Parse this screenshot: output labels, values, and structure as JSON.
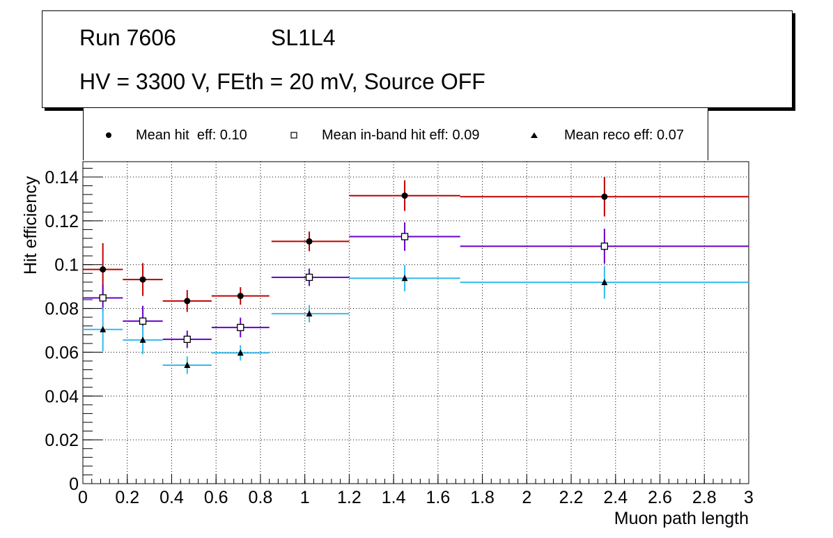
{
  "header": {
    "run_label": "Run 7606",
    "layer_label": "SL1L4",
    "conditions": "HV = 3300 V, FEth = 20 mV, Source OFF"
  },
  "legend": {
    "items": [
      {
        "label": "Mean hit  eff: 0.10",
        "marker": "filled-circle"
      },
      {
        "label": "Mean in-band hit eff: 0.09",
        "marker": "open-square"
      },
      {
        "label": "Mean reco eff: 0.07",
        "marker": "filled-triangle"
      }
    ]
  },
  "chart_data": {
    "type": "scatter",
    "title": "Run 7606 SL1L4 HV = 3300 V, FEth = 20 mV, Source OFF",
    "xlabel": "Muon path length",
    "ylabel": "Hit efficiency",
    "xlim": [
      0,
      3
    ],
    "ylim": [
      0,
      0.147
    ],
    "grid": true,
    "x_ticks": [
      0,
      0.2,
      0.4,
      0.6,
      0.8,
      1,
      1.2,
      1.4,
      1.6,
      1.8,
      2,
      2.2,
      2.4,
      2.6,
      2.8,
      3
    ],
    "x_tick_labels": [
      "0",
      "0.2",
      "0.4",
      "0.6",
      "0.8",
      "1",
      "1.2",
      "1.4",
      "1.6",
      "1.8",
      "2",
      "2.2",
      "2.4",
      "2.6",
      "2.8",
      "3"
    ],
    "y_ticks": [
      0,
      0.02,
      0.04,
      0.06,
      0.08,
      0.1,
      0.12,
      0.14
    ],
    "y_tick_labels": [
      "0",
      "0.02",
      "0.04",
      "0.06",
      "0.08",
      "0.1",
      "0.12",
      "0.14"
    ],
    "series": [
      {
        "name": "Mean hit  eff: 0.10",
        "color": "#c00000",
        "marker": "filled-circle",
        "x": [
          0.09,
          0.27,
          0.47,
          0.71,
          1.02,
          1.45,
          2.35
        ],
        "xerr_low": [
          0.09,
          0.09,
          0.11,
          0.13,
          0.17,
          0.25,
          0.65
        ],
        "xerr_high": [
          0.09,
          0.09,
          0.11,
          0.13,
          0.18,
          0.25,
          0.65
        ],
        "y": [
          0.0978,
          0.0932,
          0.0834,
          0.0857,
          0.1106,
          0.1315,
          0.131
        ],
        "yerr": [
          0.012,
          0.0075,
          0.005,
          0.004,
          0.0045,
          0.007,
          0.009
        ]
      },
      {
        "name": "Mean in-band hit eff: 0.09",
        "color": "#6600cc",
        "marker": "open-square",
        "x": [
          0.09,
          0.27,
          0.47,
          0.71,
          1.02,
          1.45,
          2.35
        ],
        "xerr_low": [
          0.09,
          0.09,
          0.11,
          0.13,
          0.17,
          0.25,
          0.65
        ],
        "xerr_high": [
          0.09,
          0.09,
          0.11,
          0.13,
          0.18,
          0.25,
          0.65
        ],
        "y": [
          0.0848,
          0.0742,
          0.0659,
          0.0713,
          0.0942,
          0.1128,
          0.1084
        ],
        "yerr": [
          0.006,
          0.007,
          0.004,
          0.0045,
          0.004,
          0.0065,
          0.008
        ]
      },
      {
        "name": "Mean reco eff: 0.07",
        "color": "#33bbee",
        "marker": "filled-triangle",
        "x": [
          0.09,
          0.27,
          0.47,
          0.71,
          1.02,
          1.45,
          2.35
        ],
        "xerr_low": [
          0.09,
          0.09,
          0.11,
          0.13,
          0.17,
          0.25,
          0.65
        ],
        "xerr_high": [
          0.09,
          0.09,
          0.11,
          0.13,
          0.18,
          0.25,
          0.65
        ],
        "y": [
          0.0704,
          0.0656,
          0.0541,
          0.0597,
          0.0776,
          0.0938,
          0.0919
        ],
        "yerr": [
          0.01,
          0.0065,
          0.004,
          0.0035,
          0.004,
          0.006,
          0.0075
        ]
      }
    ]
  }
}
